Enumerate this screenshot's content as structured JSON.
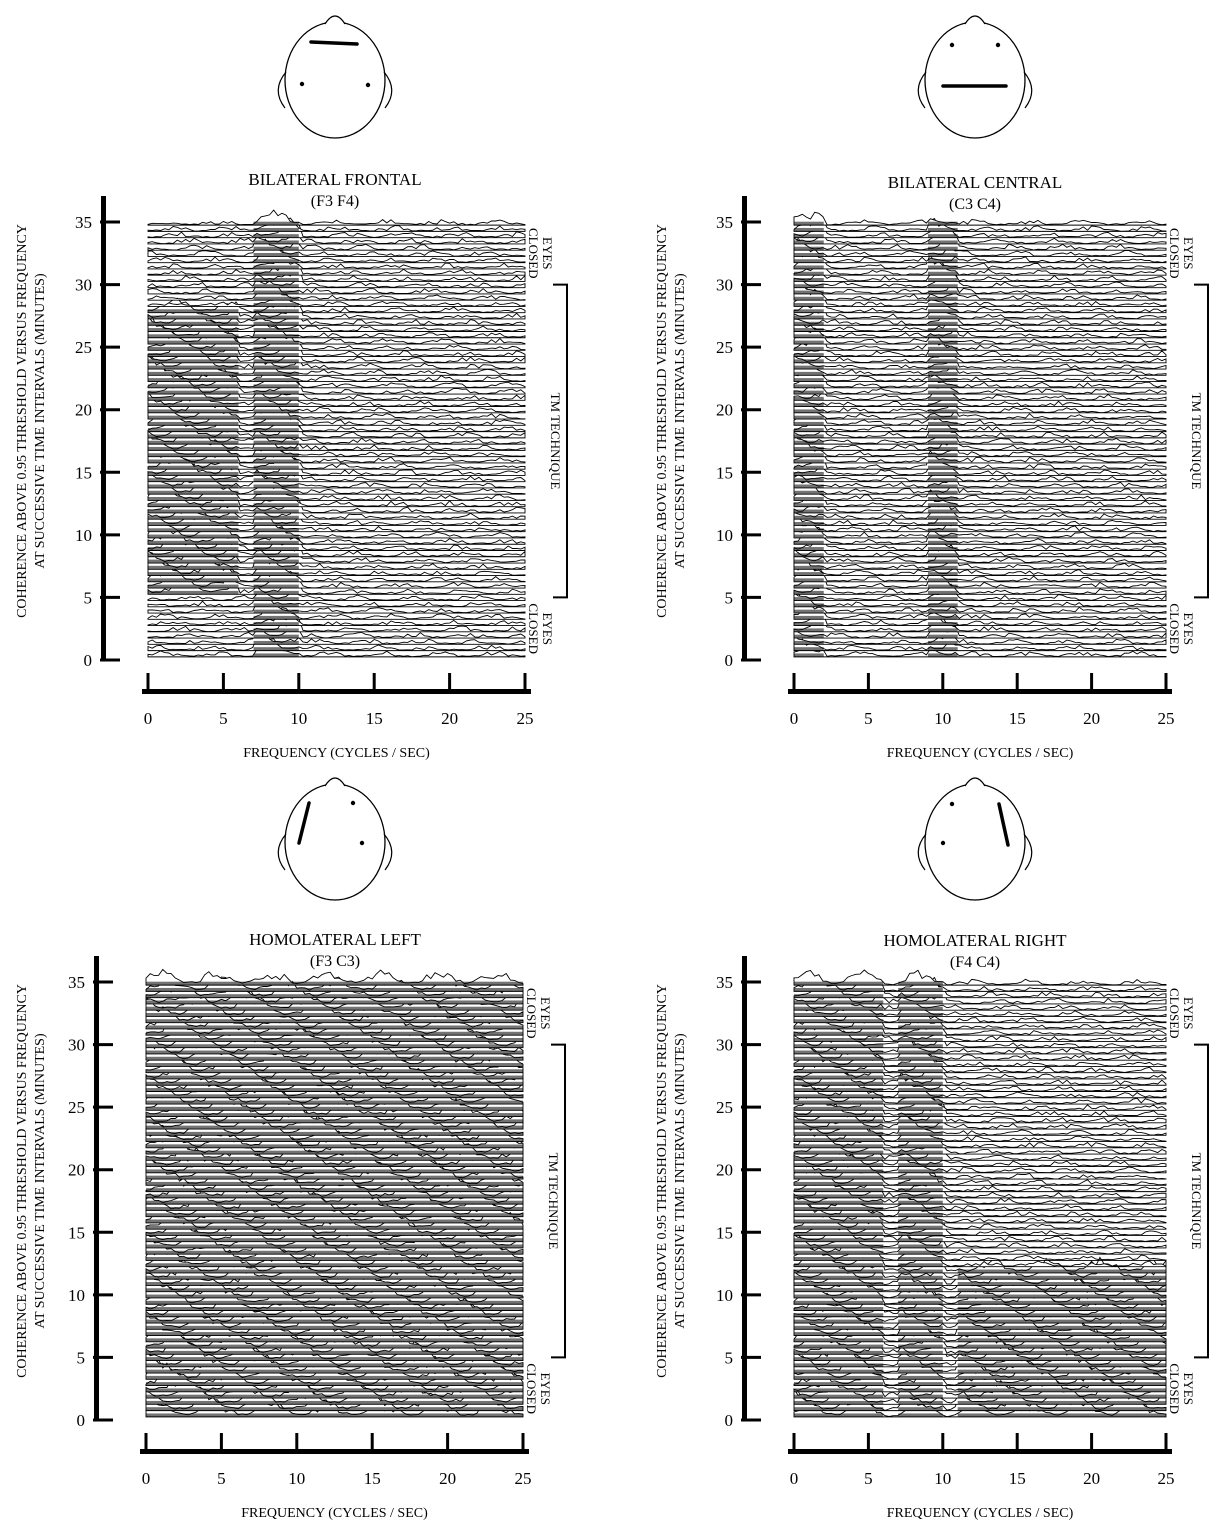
{
  "figure": {
    "x_axis_label": "FREQUENCY (CYCLES / SEC)",
    "y_axis_label_line1": "COHERENCE ABOVE 0.95 THRESHOLD VERSUS FREQUENCY",
    "y_axis_label_line2": "AT SUCCESSIVE TIME INTERVALS (MINUTES)",
    "bracket_label": "TM TECHNIQUE",
    "eyes_top": [
      "EYES",
      "CLOSED"
    ],
    "eyes_bottom": [
      "EYES",
      "CLOSED"
    ]
  },
  "chart_data": [
    {
      "type": "heatmap",
      "title": "BILATERAL FRONTAL",
      "subtitle": "(F3 F4)",
      "xlabel": "FREQUENCY (CYCLES / SEC)",
      "ylabel": "COHERENCE ABOVE 0.95 THRESHOLD VERSUS FREQUENCY AT SUCCESSIVE TIME INTERVALS (MINUTES)",
      "xlim": [
        0,
        25
      ],
      "ylim": [
        0,
        35
      ],
      "xticks": [
        0,
        5,
        10,
        15,
        20,
        25
      ],
      "yticks": [
        0,
        5,
        10,
        15,
        20,
        25,
        30,
        35
      ],
      "electrodes": [
        "F3",
        "F4"
      ],
      "periods": [
        {
          "label": "EYES CLOSED",
          "from_min": 30,
          "to_min": 35
        },
        {
          "label": "TM TECHNIQUE",
          "from_min": 5,
          "to_min": 30
        },
        {
          "label": "EYES CLOSED",
          "from_min": 0,
          "to_min": 5
        }
      ],
      "coherence_bands": [
        {
          "from_hz": 0,
          "to_hz": 6,
          "from_min": 5,
          "to_min": 28
        },
        {
          "from_hz": 7,
          "to_hz": 10,
          "from_min": 0,
          "to_min": 35
        }
      ]
    },
    {
      "type": "heatmap",
      "title": "BILATERAL CENTRAL",
      "subtitle": "(C3 C4)",
      "xlabel": "FREQUENCY (CYCLES / SEC)",
      "ylabel": "COHERENCE ABOVE 0.95 THRESHOLD VERSUS FREQUENCY AT SUCCESSIVE TIME INTERVALS (MINUTES)",
      "xlim": [
        0,
        25
      ],
      "ylim": [
        0,
        35
      ],
      "xticks": [
        0,
        5,
        10,
        15,
        20,
        25
      ],
      "yticks": [
        0,
        5,
        10,
        15,
        20,
        25,
        30,
        35
      ],
      "electrodes": [
        "C3",
        "C4"
      ],
      "periods": [
        {
          "label": "EYES CLOSED",
          "from_min": 30,
          "to_min": 35
        },
        {
          "label": "TM TECHNIQUE",
          "from_min": 5,
          "to_min": 30
        },
        {
          "label": "EYES CLOSED",
          "from_min": 0,
          "to_min": 5
        }
      ],
      "coherence_bands": [
        {
          "from_hz": 9,
          "to_hz": 11,
          "from_min": 0,
          "to_min": 35
        },
        {
          "from_hz": 0,
          "to_hz": 2,
          "from_min": 0,
          "to_min": 35
        }
      ]
    },
    {
      "type": "heatmap",
      "title": "HOMOLATERAL LEFT",
      "subtitle": "(F3 C3)",
      "xlabel": "FREQUENCY (CYCLES / SEC)",
      "ylabel": "COHERENCE ABOVE 0.95 THRESHOLD VERSUS FREQUENCY AT SUCCESSIVE TIME INTERVALS (MINUTES)",
      "xlim": [
        0,
        25
      ],
      "ylim": [
        0,
        35
      ],
      "xticks": [
        0,
        5,
        10,
        15,
        20,
        25
      ],
      "yticks": [
        0,
        5,
        10,
        15,
        20,
        25,
        30,
        35
      ],
      "electrodes": [
        "F3",
        "C3"
      ],
      "periods": [
        {
          "label": "EYES CLOSED",
          "from_min": 30,
          "to_min": 35
        },
        {
          "label": "TM TECHNIQUE",
          "from_min": 5,
          "to_min": 30
        },
        {
          "label": "EYES CLOSED",
          "from_min": 0,
          "to_min": 5
        }
      ],
      "coherence_bands": [
        {
          "from_hz": 0,
          "to_hz": 25,
          "from_min": 0,
          "to_min": 35
        }
      ]
    },
    {
      "type": "heatmap",
      "title": "HOMOLATERAL RIGHT",
      "subtitle": "(F4 C4)",
      "xlabel": "FREQUENCY (CYCLES / SEC)",
      "ylabel": "COHERENCE ABOVE 0.95 THRESHOLD VERSUS FREQUENCY AT SUCCESSIVE TIME INTERVALS (MINUTES)",
      "xlim": [
        0,
        25
      ],
      "ylim": [
        0,
        35
      ],
      "xticks": [
        0,
        5,
        10,
        15,
        20,
        25
      ],
      "yticks": [
        0,
        5,
        10,
        15,
        20,
        25,
        30,
        35
      ],
      "electrodes": [
        "F4",
        "C4"
      ],
      "periods": [
        {
          "label": "EYES CLOSED",
          "from_min": 30,
          "to_min": 35
        },
        {
          "label": "TM TECHNIQUE",
          "from_min": 5,
          "to_min": 30
        },
        {
          "label": "EYES CLOSED",
          "from_min": 0,
          "to_min": 5
        }
      ],
      "coherence_bands": [
        {
          "from_hz": 7,
          "to_hz": 10,
          "from_min": 0,
          "to_min": 35
        },
        {
          "from_hz": 0,
          "to_hz": 6,
          "from_min": 0,
          "to_min": 35
        },
        {
          "from_hz": 11,
          "to_hz": 25,
          "from_min": 0,
          "to_min": 12
        }
      ]
    }
  ]
}
